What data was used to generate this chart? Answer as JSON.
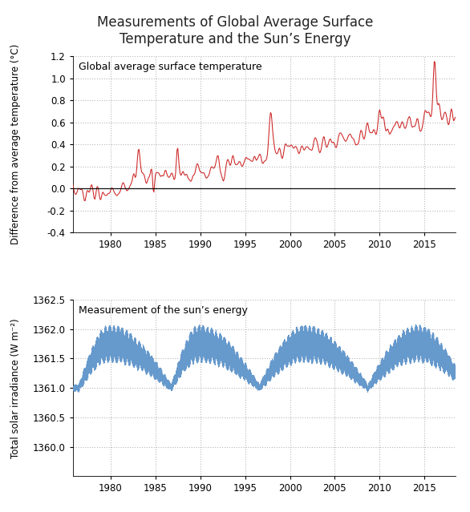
{
  "title": "Measurements of Global Average Surface\nTemperature and the Sun’s Energy",
  "title_fontsize": 12,
  "temp_label": "Global average surface temperature",
  "temp_ylabel": "Difference from average temperature (°C)",
  "temp_color": "#cc2222",
  "temp_ylim": [
    -0.4,
    1.2
  ],
  "temp_yticks": [
    -0.4,
    -0.2,
    0.0,
    0.2,
    0.4,
    0.6,
    0.8,
    1.0,
    1.2
  ],
  "temp_hline_y": 0.0,
  "temp_hline_color": "#111111",
  "solar_label": "Measurement of the sun’s energy",
  "solar_ylabel": "Total solar irradiance (W m⁻²)",
  "solar_color": "#6699cc",
  "solar_ylim": [
    1359.5,
    1362.5
  ],
  "solar_yticks": [
    1360.0,
    1360.5,
    1361.0,
    1361.5,
    1362.0,
    1362.5
  ],
  "xlim": [
    1975.8,
    2018.5
  ],
  "xticks": [
    1980,
    1985,
    1990,
    1995,
    2000,
    2005,
    2010,
    2015
  ],
  "grid_color": "#999999",
  "grid_alpha": 0.7,
  "bg_color": "#ffffff",
  "label_fontsize": 8.5,
  "tick_fontsize": 8.5,
  "annotation_fontsize": 9,
  "linewidth_temp": 0.75,
  "linewidth_solar": 0.75
}
